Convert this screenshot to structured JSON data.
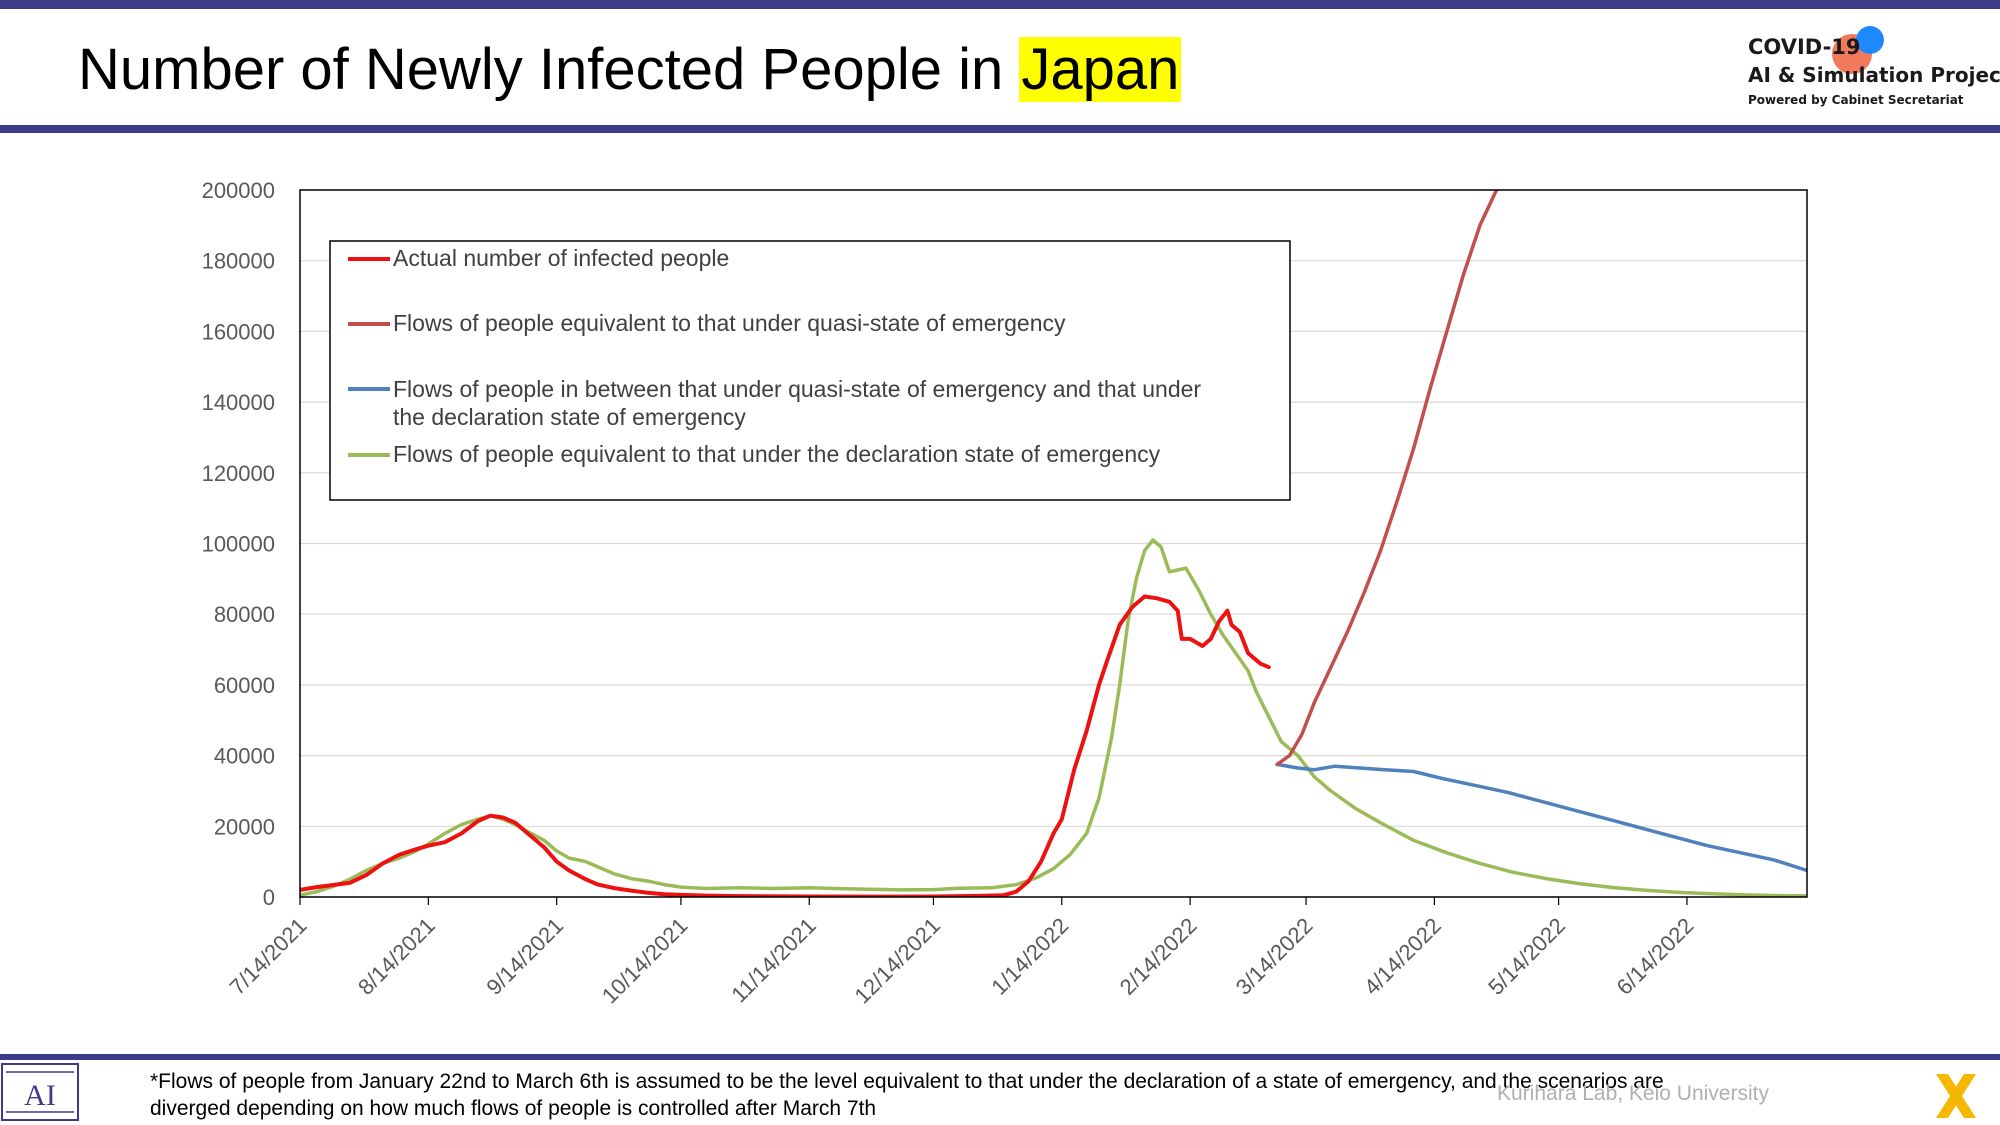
{
  "header": {
    "title_prefix": "Number of Newly Infected People in ",
    "title_highlight": "Japan",
    "rule_color": "#3d3a8a",
    "highlight_color": "#ffff00"
  },
  "logo": {
    "line1": "COVID-19",
    "line2": "AI & Simulation Project",
    "line3": "Powered by Cabinet Secretariat",
    "dot_colors": [
      "#f06b4a",
      "#1e88ff"
    ]
  },
  "chart_data": {
    "type": "line",
    "title": "",
    "xlabel": "",
    "ylabel": "",
    "ylim": [
      0,
      200000
    ],
    "yticks": [
      0,
      20000,
      40000,
      60000,
      80000,
      100000,
      120000,
      140000,
      160000,
      180000,
      200000
    ],
    "xlim": [
      "2021-07-14",
      "2022-07-13"
    ],
    "xticks": [
      "7/14/2021",
      "8/14/2021",
      "9/14/2021",
      "10/14/2021",
      "11/14/2021",
      "12/14/2021",
      "1/14/2022",
      "2/14/2022",
      "3/14/2022",
      "4/14/2022",
      "5/14/2022",
      "6/14/2022"
    ],
    "grid": "horizontal",
    "legend_position": "top-left",
    "series": [
      {
        "name": "Actual number of infected people",
        "color": "#ee1111",
        "points": [
          [
            "2021-07-14",
            2000
          ],
          [
            "2021-07-18",
            2800
          ],
          [
            "2021-07-22",
            3400
          ],
          [
            "2021-07-26",
            4000
          ],
          [
            "2021-07-30",
            6200
          ],
          [
            "2021-08-03",
            9500
          ],
          [
            "2021-08-07",
            12000
          ],
          [
            "2021-08-11",
            13500
          ],
          [
            "2021-08-14",
            14500
          ],
          [
            "2021-08-18",
            15500
          ],
          [
            "2021-08-22",
            18000
          ],
          [
            "2021-08-26",
            21500
          ],
          [
            "2021-08-29",
            23000
          ],
          [
            "2021-09-01",
            22500
          ],
          [
            "2021-09-04",
            21000
          ],
          [
            "2021-09-07",
            18000
          ],
          [
            "2021-09-11",
            14000
          ],
          [
            "2021-09-14",
            10000
          ],
          [
            "2021-09-17",
            7500
          ],
          [
            "2021-09-21",
            5000
          ],
          [
            "2021-09-24",
            3500
          ],
          [
            "2021-09-28",
            2500
          ],
          [
            "2021-10-02",
            1800
          ],
          [
            "2021-10-06",
            1200
          ],
          [
            "2021-10-10",
            800
          ],
          [
            "2021-10-14",
            600
          ],
          [
            "2021-10-20",
            400
          ],
          [
            "2021-10-28",
            250
          ],
          [
            "2021-11-14",
            150
          ],
          [
            "2021-12-01",
            120
          ],
          [
            "2021-12-14",
            150
          ],
          [
            "2021-12-25",
            300
          ],
          [
            "2021-12-31",
            500
          ],
          [
            "2022-01-03",
            1500
          ],
          [
            "2022-01-06",
            4500
          ],
          [
            "2022-01-09",
            10000
          ],
          [
            "2022-01-12",
            18000
          ],
          [
            "2022-01-14",
            22000
          ],
          [
            "2022-01-17",
            36000
          ],
          [
            "2022-01-20",
            47000
          ],
          [
            "2022-01-23",
            60000
          ],
          [
            "2022-01-25",
            67000
          ],
          [
            "2022-01-28",
            77000
          ],
          [
            "2022-01-31",
            82000
          ],
          [
            "2022-02-03",
            85000
          ],
          [
            "2022-02-06",
            84500
          ],
          [
            "2022-02-09",
            83500
          ],
          [
            "2022-02-11",
            81000
          ],
          [
            "2022-02-12",
            73000
          ],
          [
            "2022-02-14",
            73000
          ],
          [
            "2022-02-17",
            71000
          ],
          [
            "2022-02-19",
            73000
          ],
          [
            "2022-02-21",
            78000
          ],
          [
            "2022-02-23",
            81000
          ],
          [
            "2022-02-24",
            77000
          ],
          [
            "2022-02-26",
            75000
          ],
          [
            "2022-02-28",
            69000
          ],
          [
            "2022-03-03",
            66000
          ],
          [
            "2022-03-05",
            65000
          ]
        ]
      },
      {
        "name": "Flows of people equivalent to that under quasi-state of emergency",
        "color": "#c0504d",
        "points": [
          [
            "2022-03-07",
            37500
          ],
          [
            "2022-03-10",
            40000
          ],
          [
            "2022-03-13",
            46000
          ],
          [
            "2022-03-16",
            55000
          ],
          [
            "2022-03-20",
            65000
          ],
          [
            "2022-03-24",
            75000
          ],
          [
            "2022-03-28",
            86000
          ],
          [
            "2022-04-01",
            98000
          ],
          [
            "2022-04-05",
            112000
          ],
          [
            "2022-04-09",
            127000
          ],
          [
            "2022-04-13",
            144000
          ],
          [
            "2022-04-17",
            160000
          ],
          [
            "2022-04-21",
            176000
          ],
          [
            "2022-04-25",
            190000
          ],
          [
            "2022-04-29",
            200000
          ]
        ]
      },
      {
        "name": "Flows of people in between that under quasi-state of emergency and that under the declaration state of emergency",
        "color": "#4f81bd",
        "points": [
          [
            "2022-03-07",
            37500
          ],
          [
            "2022-03-12",
            36500
          ],
          [
            "2022-03-16",
            36000
          ],
          [
            "2022-03-21",
            37000
          ],
          [
            "2022-03-27",
            36500
          ],
          [
            "2022-04-02",
            36000
          ],
          [
            "2022-04-09",
            35500
          ],
          [
            "2022-04-16",
            33500
          ],
          [
            "2022-04-24",
            31500
          ],
          [
            "2022-05-02",
            29500
          ],
          [
            "2022-05-10",
            27000
          ],
          [
            "2022-05-18",
            24500
          ],
          [
            "2022-05-26",
            22000
          ],
          [
            "2022-06-03",
            19500
          ],
          [
            "2022-06-11",
            17000
          ],
          [
            "2022-06-19",
            14500
          ],
          [
            "2022-06-27",
            12500
          ],
          [
            "2022-07-05",
            10500
          ],
          [
            "2022-07-13",
            7500
          ]
        ]
      },
      {
        "name": "Flows of people equivalent to that under the declaration state of emergency",
        "color": "#9bbb59",
        "points": [
          [
            "2021-07-14",
            500
          ],
          [
            "2021-07-18",
            1500
          ],
          [
            "2021-07-22",
            3000
          ],
          [
            "2021-07-26",
            5000
          ],
          [
            "2021-07-30",
            7500
          ],
          [
            "2021-08-03",
            9500
          ],
          [
            "2021-08-07",
            11000
          ],
          [
            "2021-08-11",
            13000
          ],
          [
            "2021-08-14",
            15000
          ],
          [
            "2021-08-18",
            18000
          ],
          [
            "2021-08-22",
            20500
          ],
          [
            "2021-08-26",
            22000
          ],
          [
            "2021-08-29",
            23000
          ],
          [
            "2021-09-01",
            22000
          ],
          [
            "2021-09-04",
            20500
          ],
          [
            "2021-09-07",
            18500
          ],
          [
            "2021-09-11",
            16000
          ],
          [
            "2021-09-14",
            13000
          ],
          [
            "2021-09-17",
            11000
          ],
          [
            "2021-09-21",
            10000
          ],
          [
            "2021-09-24",
            8500
          ],
          [
            "2021-09-28",
            6500
          ],
          [
            "2021-10-02",
            5200
          ],
          [
            "2021-10-06",
            4500
          ],
          [
            "2021-10-10",
            3500
          ],
          [
            "2021-10-14",
            2800
          ],
          [
            "2021-10-20",
            2400
          ],
          [
            "2021-10-28",
            2600
          ],
          [
            "2021-11-05",
            2400
          ],
          [
            "2021-11-14",
            2600
          ],
          [
            "2021-11-20",
            2400
          ],
          [
            "2021-11-28",
            2200
          ],
          [
            "2021-12-06",
            2000
          ],
          [
            "2021-12-14",
            2100
          ],
          [
            "2021-12-20",
            2500
          ],
          [
            "2021-12-28",
            2600
          ],
          [
            "2022-01-03",
            3500
          ],
          [
            "2022-01-08",
            5500
          ],
          [
            "2022-01-12",
            8000
          ],
          [
            "2022-01-16",
            12000
          ],
          [
            "2022-01-20",
            18000
          ],
          [
            "2022-01-23",
            28000
          ],
          [
            "2022-01-26",
            45000
          ],
          [
            "2022-01-28",
            60000
          ],
          [
            "2022-01-30",
            78000
          ],
          [
            "2022-02-01",
            90000
          ],
          [
            "2022-02-03",
            98000
          ],
          [
            "2022-02-05",
            101000
          ],
          [
            "2022-02-07",
            99000
          ],
          [
            "2022-02-09",
            92000
          ],
          [
            "2022-02-11",
            92500
          ],
          [
            "2022-02-13",
            93000
          ],
          [
            "2022-02-16",
            87000
          ],
          [
            "2022-02-19",
            80000
          ],
          [
            "2022-02-22",
            74000
          ],
          [
            "2022-02-25",
            69000
          ],
          [
            "2022-02-28",
            64000
          ],
          [
            "2022-03-02",
            58000
          ],
          [
            "2022-03-05",
            51000
          ],
          [
            "2022-03-08",
            44000
          ],
          [
            "2022-03-12",
            40000
          ],
          [
            "2022-03-16",
            34000
          ],
          [
            "2022-03-20",
            30000
          ],
          [
            "2022-03-26",
            25000
          ],
          [
            "2022-04-01",
            21000
          ],
          [
            "2022-04-09",
            16000
          ],
          [
            "2022-04-17",
            12500
          ],
          [
            "2022-04-25",
            9500
          ],
          [
            "2022-05-03",
            7000
          ],
          [
            "2022-05-11",
            5200
          ],
          [
            "2022-05-19",
            3800
          ],
          [
            "2022-05-27",
            2700
          ],
          [
            "2022-06-04",
            1900
          ],
          [
            "2022-06-12",
            1300
          ],
          [
            "2022-06-20",
            900
          ],
          [
            "2022-06-28",
            600
          ],
          [
            "2022-07-06",
            400
          ],
          [
            "2022-07-13",
            300
          ]
        ]
      }
    ]
  },
  "legend": {
    "items": [
      {
        "line1": "Actual number of infected people",
        "line2": ""
      },
      {
        "line1": "Flows of people equivalent to that under quasi-state of emergency",
        "line2": ""
      },
      {
        "line1": "Flows of people in between that under quasi-state of emergency and that under",
        "line2": "the declaration state of emergency"
      },
      {
        "line1": "Flows of people equivalent to that under the declaration state of emergency",
        "line2": ""
      }
    ]
  },
  "footer": {
    "note": "*Flows of people from January 22nd to March 6th is assumed to be the level equivalent to that under the declaration of a state of emergency, and the scenarios are diverged depending on how much flows of people is controlled after March 7th",
    "credit": "Kurihara Lab, Keio University",
    "lab_logo_text": "AI"
  }
}
